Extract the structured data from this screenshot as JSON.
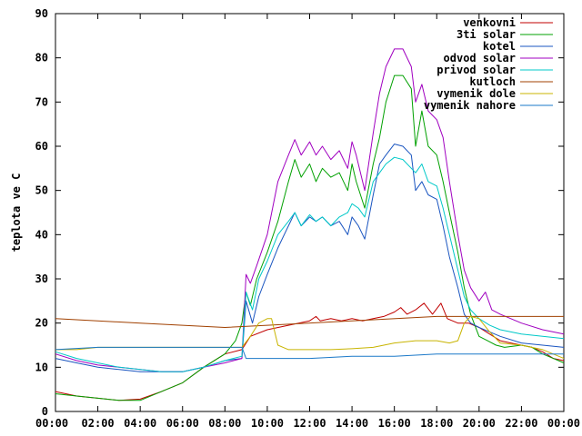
{
  "chart_data": {
    "type": "line",
    "title": "",
    "xlabel": "",
    "ylabel": "teplota ve C",
    "xlim": [
      0,
      24
    ],
    "ylim": [
      0,
      90
    ],
    "x_ticks": [
      {
        "value": 0,
        "label": "00:00"
      },
      {
        "value": 2,
        "label": "02:00"
      },
      {
        "value": 4,
        "label": "04:00"
      },
      {
        "value": 6,
        "label": "06:00"
      },
      {
        "value": 8,
        "label": "08:00"
      },
      {
        "value": 10,
        "label": "10:00"
      },
      {
        "value": 12,
        "label": "12:00"
      },
      {
        "value": 14,
        "label": "14:00"
      },
      {
        "value": 16,
        "label": "16:00"
      },
      {
        "value": 18,
        "label": "18:00"
      },
      {
        "value": 20,
        "label": "20:00"
      },
      {
        "value": 22,
        "label": "22:00"
      },
      {
        "value": 24,
        "label": "00:00"
      }
    ],
    "y_ticks": [
      0,
      10,
      20,
      30,
      40,
      50,
      60,
      70,
      80,
      90
    ],
    "grid": false,
    "legend_position": "top-right",
    "series": [
      {
        "name": "venkovni",
        "color": "#c00000",
        "points": [
          [
            0,
            4.5
          ],
          [
            1,
            3.5
          ],
          [
            2,
            3.0
          ],
          [
            3,
            2.5
          ],
          [
            4,
            2.8
          ],
          [
            5,
            4.5
          ],
          [
            6,
            6.5
          ],
          [
            7,
            10
          ],
          [
            8,
            13
          ],
          [
            8.8,
            14
          ],
          [
            9.2,
            17
          ],
          [
            10,
            18.5
          ],
          [
            11,
            19.5
          ],
          [
            12,
            20.5
          ],
          [
            12.3,
            21.5
          ],
          [
            12.5,
            20.5
          ],
          [
            13,
            21
          ],
          [
            13.5,
            20.5
          ],
          [
            14,
            21
          ],
          [
            14.5,
            20.5
          ],
          [
            15,
            21
          ],
          [
            15.5,
            21.5
          ],
          [
            16,
            22.5
          ],
          [
            16.3,
            23.5
          ],
          [
            16.6,
            22
          ],
          [
            17,
            23
          ],
          [
            17.4,
            24.5
          ],
          [
            17.8,
            22
          ],
          [
            18.2,
            24.5
          ],
          [
            18.5,
            21
          ],
          [
            19,
            20
          ],
          [
            19.5,
            20
          ],
          [
            20,
            19
          ],
          [
            20.5,
            17.5
          ],
          [
            21,
            16
          ],
          [
            21.5,
            15.5
          ],
          [
            22,
            15
          ],
          [
            22.5,
            14.5
          ],
          [
            23,
            13.5
          ],
          [
            23.5,
            12
          ],
          [
            24,
            11.5
          ]
        ]
      },
      {
        "name": "3ti solar",
        "color": "#00a000",
        "points": [
          [
            0,
            4
          ],
          [
            1,
            3.5
          ],
          [
            2,
            3
          ],
          [
            3,
            2.5
          ],
          [
            4,
            2.5
          ],
          [
            5,
            4.5
          ],
          [
            6,
            6.5
          ],
          [
            7,
            10
          ],
          [
            8,
            13
          ],
          [
            8.5,
            16
          ],
          [
            8.8,
            20
          ],
          [
            9,
            27
          ],
          [
            9.2,
            24
          ],
          [
            9.5,
            30
          ],
          [
            10,
            36
          ],
          [
            10.5,
            43
          ],
          [
            11,
            52
          ],
          [
            11.3,
            57
          ],
          [
            11.6,
            53
          ],
          [
            12,
            56
          ],
          [
            12.3,
            52
          ],
          [
            12.6,
            55
          ],
          [
            13,
            53
          ],
          [
            13.4,
            54
          ],
          [
            13.8,
            50
          ],
          [
            14,
            56
          ],
          [
            14.2,
            52
          ],
          [
            14.6,
            46
          ],
          [
            15,
            56
          ],
          [
            15.3,
            62
          ],
          [
            15.6,
            70
          ],
          [
            16,
            76
          ],
          [
            16.4,
            76
          ],
          [
            16.8,
            73
          ],
          [
            17,
            60
          ],
          [
            17.3,
            68
          ],
          [
            17.6,
            60
          ],
          [
            18,
            58
          ],
          [
            18.3,
            52
          ],
          [
            18.6,
            45
          ],
          [
            19,
            36
          ],
          [
            19.3,
            28
          ],
          [
            19.6,
            22
          ],
          [
            20,
            17
          ],
          [
            20.4,
            16
          ],
          [
            20.8,
            15
          ],
          [
            21.2,
            14.5
          ],
          [
            22,
            15
          ],
          [
            22.5,
            14.5
          ],
          [
            23,
            13
          ],
          [
            23.5,
            12
          ],
          [
            24,
            11
          ]
        ]
      },
      {
        "name": "kotel",
        "color": "#1a55c0",
        "points": [
          [
            0,
            12
          ],
          [
            1,
            11
          ],
          [
            2,
            10
          ],
          [
            3,
            9.5
          ],
          [
            4,
            9
          ],
          [
            5,
            9
          ],
          [
            6,
            9
          ],
          [
            7,
            10
          ],
          [
            8,
            11.5
          ],
          [
            8.8,
            12
          ],
          [
            9,
            25
          ],
          [
            9.3,
            20
          ],
          [
            9.6,
            26
          ],
          [
            10,
            31
          ],
          [
            10.5,
            37
          ],
          [
            11,
            42
          ],
          [
            11.3,
            45
          ],
          [
            11.6,
            42
          ],
          [
            12,
            44
          ],
          [
            12.3,
            43
          ],
          [
            12.6,
            44
          ],
          [
            13,
            42
          ],
          [
            13.4,
            43
          ],
          [
            13.8,
            40
          ],
          [
            14,
            44
          ],
          [
            14.3,
            42
          ],
          [
            14.6,
            39
          ],
          [
            15,
            49
          ],
          [
            15.3,
            56
          ],
          [
            15.6,
            58
          ],
          [
            16,
            60.5
          ],
          [
            16.4,
            60
          ],
          [
            16.8,
            58
          ],
          [
            17,
            50
          ],
          [
            17.3,
            52
          ],
          [
            17.6,
            49
          ],
          [
            18,
            48
          ],
          [
            18.3,
            42
          ],
          [
            18.6,
            35
          ],
          [
            19,
            28
          ],
          [
            19.3,
            22
          ],
          [
            19.6,
            20
          ],
          [
            20,
            19
          ],
          [
            20.5,
            18
          ],
          [
            21,
            17
          ],
          [
            22,
            15.5
          ],
          [
            23,
            15
          ],
          [
            24,
            14.5
          ]
        ]
      },
      {
        "name": "odvod solar",
        "color": "#a000c0",
        "points": [
          [
            0,
            13
          ],
          [
            1,
            11.5
          ],
          [
            2,
            10.5
          ],
          [
            3,
            10
          ],
          [
            4,
            9.5
          ],
          [
            5,
            9
          ],
          [
            6,
            9
          ],
          [
            7,
            10
          ],
          [
            8,
            11
          ],
          [
            8.8,
            12
          ],
          [
            9,
            31
          ],
          [
            9.2,
            29
          ],
          [
            9.5,
            33
          ],
          [
            10,
            40
          ],
          [
            10.5,
            52
          ],
          [
            11,
            58
          ],
          [
            11.3,
            61.5
          ],
          [
            11.6,
            58
          ],
          [
            12,
            61
          ],
          [
            12.3,
            58
          ],
          [
            12.6,
            60
          ],
          [
            13,
            57
          ],
          [
            13.4,
            59
          ],
          [
            13.8,
            55
          ],
          [
            14,
            61
          ],
          [
            14.2,
            58
          ],
          [
            14.6,
            50
          ],
          [
            15,
            63
          ],
          [
            15.3,
            72
          ],
          [
            15.6,
            78
          ],
          [
            16,
            82
          ],
          [
            16.4,
            82
          ],
          [
            16.8,
            78
          ],
          [
            17,
            70
          ],
          [
            17.3,
            74
          ],
          [
            17.6,
            68
          ],
          [
            18,
            66
          ],
          [
            18.3,
            62
          ],
          [
            18.6,
            52
          ],
          [
            19,
            40
          ],
          [
            19.3,
            32
          ],
          [
            19.6,
            28
          ],
          [
            20,
            25
          ],
          [
            20.3,
            27
          ],
          [
            20.6,
            23
          ],
          [
            21,
            22
          ],
          [
            22,
            20
          ],
          [
            23,
            18.5
          ],
          [
            24,
            17.5
          ]
        ]
      },
      {
        "name": "privod solar",
        "color": "#00c8c8",
        "points": [
          [
            0,
            13.5
          ],
          [
            1,
            12
          ],
          [
            2,
            11
          ],
          [
            3,
            10
          ],
          [
            4,
            9.5
          ],
          [
            5,
            9
          ],
          [
            6,
            9
          ],
          [
            7,
            10
          ],
          [
            8,
            11.5
          ],
          [
            8.8,
            12.5
          ],
          [
            9,
            27
          ],
          [
            9.3,
            23
          ],
          [
            9.6,
            30
          ],
          [
            10,
            34
          ],
          [
            10.5,
            40
          ],
          [
            11,
            43
          ],
          [
            11.3,
            45
          ],
          [
            11.6,
            42
          ],
          [
            12,
            44.5
          ],
          [
            12.3,
            43
          ],
          [
            12.6,
            44
          ],
          [
            13,
            42
          ],
          [
            13.4,
            44
          ],
          [
            13.8,
            45
          ],
          [
            14,
            47
          ],
          [
            14.3,
            46
          ],
          [
            14.6,
            44
          ],
          [
            15,
            52
          ],
          [
            15.3,
            54
          ],
          [
            15.6,
            56
          ],
          [
            16,
            57.5
          ],
          [
            16.4,
            57
          ],
          [
            16.8,
            55
          ],
          [
            17,
            54
          ],
          [
            17.3,
            56
          ],
          [
            17.6,
            52
          ],
          [
            18,
            51
          ],
          [
            18.3,
            46
          ],
          [
            18.6,
            40
          ],
          [
            19,
            32
          ],
          [
            19.3,
            26
          ],
          [
            19.6,
            23
          ],
          [
            20,
            21
          ],
          [
            20.5,
            19.5
          ],
          [
            21,
            18.5
          ],
          [
            22,
            17.5
          ],
          [
            23,
            17
          ],
          [
            24,
            16.5
          ]
        ]
      },
      {
        "name": "kutloch",
        "color": "#a04000",
        "points": [
          [
            0,
            21
          ],
          [
            4,
            20
          ],
          [
            8,
            19
          ],
          [
            10,
            19.5
          ],
          [
            14,
            20.5
          ],
          [
            18,
            21.5
          ],
          [
            20,
            21.5
          ],
          [
            24,
            21.5
          ]
        ]
      },
      {
        "name": "vymenik dole",
        "color": "#c8b400",
        "points": [
          [
            0,
            14
          ],
          [
            1,
            14
          ],
          [
            2,
            14.5
          ],
          [
            3,
            14.5
          ],
          [
            4,
            14.5
          ],
          [
            6,
            14.5
          ],
          [
            8,
            14.5
          ],
          [
            8.8,
            14.5
          ],
          [
            9.2,
            17
          ],
          [
            9.6,
            20
          ],
          [
            10,
            21
          ],
          [
            10.2,
            21
          ],
          [
            10.5,
            15
          ],
          [
            11,
            14
          ],
          [
            12,
            14
          ],
          [
            13,
            14
          ],
          [
            14,
            14.2
          ],
          [
            15,
            14.5
          ],
          [
            16,
            15.5
          ],
          [
            17,
            16
          ],
          [
            18,
            16
          ],
          [
            18.6,
            15.5
          ],
          [
            19,
            16
          ],
          [
            19.3,
            20
          ],
          [
            19.6,
            21.5
          ],
          [
            20,
            21
          ],
          [
            20.5,
            18
          ],
          [
            21,
            15.5
          ],
          [
            22,
            15
          ],
          [
            23,
            14
          ],
          [
            24,
            12
          ]
        ]
      },
      {
        "name": "vymenik nahore",
        "color": "#1a78c8",
        "points": [
          [
            0,
            14
          ],
          [
            2,
            14.5
          ],
          [
            4,
            14.5
          ],
          [
            6,
            14.5
          ],
          [
            8,
            14.5
          ],
          [
            8.8,
            14.5
          ],
          [
            9,
            12
          ],
          [
            10,
            12
          ],
          [
            12,
            12
          ],
          [
            14,
            12.5
          ],
          [
            16,
            12.5
          ],
          [
            18,
            13
          ],
          [
            20,
            13
          ],
          [
            22,
            13
          ],
          [
            24,
            13
          ]
        ]
      }
    ]
  }
}
